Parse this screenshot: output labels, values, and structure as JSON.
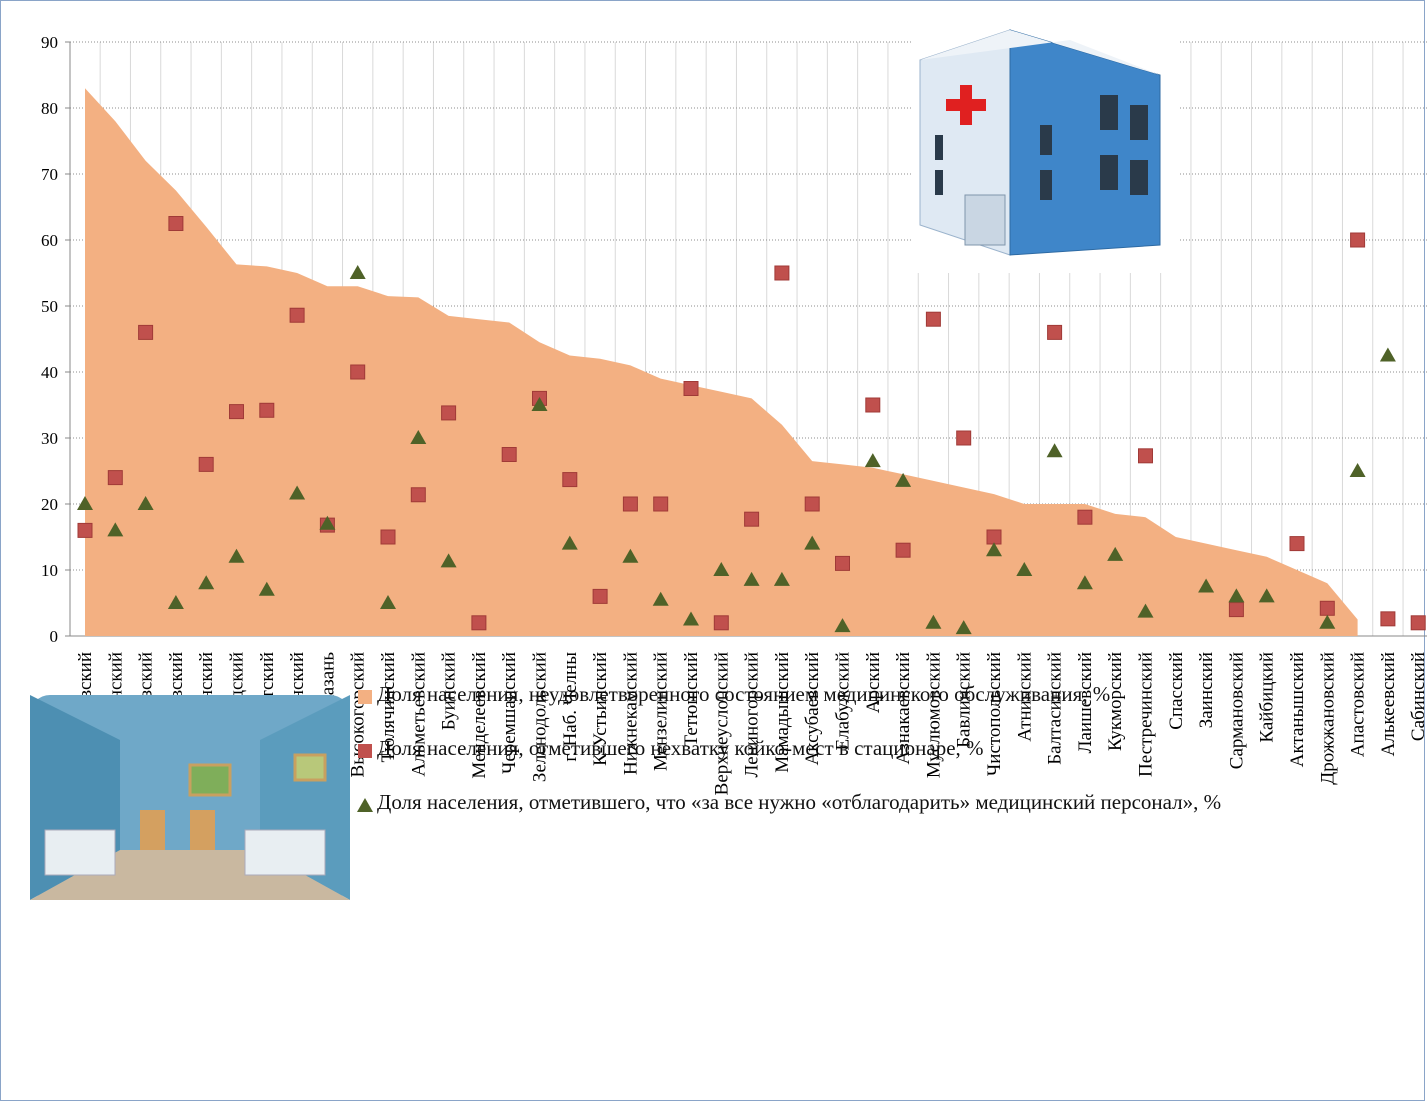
{
  "chart_data": {
    "type": "mixed",
    "categories": [
      "Тукаевский",
      "Новошешминский",
      "Агрызский",
      "Алексеевский",
      "Ютазинский",
      "Р-Слободский",
      "Нурлатский",
      "Бугульминский",
      "г. Казань",
      "Высокогорский",
      "Тюлячинский",
      "Альметьевский",
      "Буинский",
      "Менделеевский",
      "Черемшанский",
      "Зеленодольский",
      "г. Наб. Челны",
      "К-Устьинский",
      "Нижнекамский",
      "Мензелинский",
      "Тетюшский",
      "Верхнеуслонский",
      "Лениногорский",
      "Мамадышский",
      "Аксубаевский",
      "Елабужский",
      "Арский",
      "Азнакаевский",
      "Муслюмовский",
      "Бавлинский",
      "Чистопольский",
      "Атнинский",
      "Балтасинский",
      "Лаишевский",
      "Кукморский",
      "Пестречинский",
      "Спасский",
      "Заинский",
      "Сармановский",
      "Кайбицкий",
      "Актанышский",
      "Дрожжановский",
      "Апастовский",
      "Алькеевский",
      "Сабинский"
    ],
    "series": [
      {
        "name": "Доля населения, неудовлетворенного состоянием медицинского обслуживания, %",
        "color": "#f3b082",
        "marker": "area",
        "values": [
          83,
          78,
          72,
          67.5,
          62,
          56.3,
          56,
          55,
          53,
          53,
          51.5,
          51.3,
          48.5,
          48,
          47.5,
          44.5,
          42.5,
          42,
          41,
          39,
          38,
          37,
          36,
          32,
          26.5,
          26,
          25.5,
          24.5,
          23.5,
          22.5,
          21.5,
          20,
          20,
          20,
          18.5,
          18,
          15,
          14,
          13,
          12,
          10,
          8,
          2.5,
          null,
          null
        ]
      },
      {
        "name": "Доля населения, отметившего нехватку койко-мест в стационаре, %",
        "color": "#c0504d",
        "marker": "square",
        "values": [
          16,
          24,
          46,
          62.5,
          26,
          34,
          34.2,
          48.6,
          16.8,
          40,
          15,
          21.4,
          33.8,
          2,
          27.5,
          36,
          23.7,
          6,
          20,
          20,
          37.5,
          2,
          17.7,
          55,
          20,
          11,
          35,
          13,
          48,
          30,
          15,
          null,
          46,
          18,
          null,
          27.3,
          null,
          null,
          4,
          null,
          14,
          4.2,
          60,
          2.6,
          2
        ]
      },
      {
        "name": "Доля населения, отметившего, что «за все нужно «отблагодарить» медицинский персонал», %",
        "color": "#4f6228",
        "marker": "triangle",
        "values": [
          20,
          16,
          20,
          5,
          8,
          12,
          7,
          21.6,
          17,
          55,
          5,
          30,
          11.3,
          null,
          null,
          35,
          14,
          null,
          12,
          5.5,
          2.5,
          10,
          8.5,
          8.5,
          14,
          1.5,
          26.5,
          23.5,
          2,
          1.2,
          13,
          10,
          28,
          8,
          12.3,
          3.7,
          null,
          7.5,
          6,
          6,
          null,
          2,
          25,
          42.5,
          null
        ]
      }
    ],
    "ylim": [
      0,
      90
    ],
    "yticks": [
      0,
      10,
      20,
      30,
      40,
      50,
      60,
      70,
      80,
      90
    ],
    "grid": true
  }
}
